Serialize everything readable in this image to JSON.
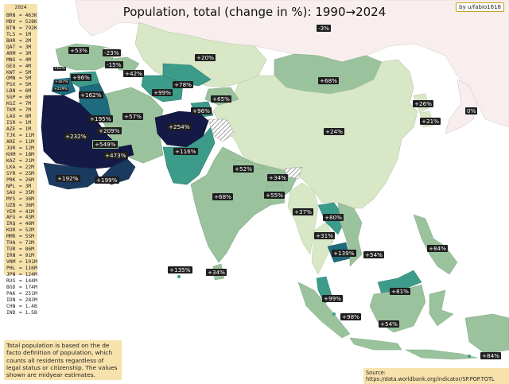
{
  "title": "Population, total (change in %):  1990→2024",
  "credit": "by u/fabio1618",
  "legend": {
    "year": "2024",
    "rows": [
      {
        "code": "BRN",
        "value": "463K"
      },
      {
        "code": "MDV",
        "value": "528K"
      },
      {
        "code": "BTN",
        "value": "792K"
      },
      {
        "code": "TLS",
        "value": "1M"
      },
      {
        "code": "BHR",
        "value": "2M"
      },
      {
        "code": "QAT",
        "value": "3M"
      },
      {
        "code": "ARM",
        "value": "3M"
      },
      {
        "code": "MNG",
        "value": "4M"
      },
      {
        "code": "GEO",
        "value": "4M"
      },
      {
        "code": "KWT",
        "value": "5M"
      },
      {
        "code": "OMN",
        "value": "5M"
      },
      {
        "code": "PSX",
        "value": "5M"
      },
      {
        "code": "LBN",
        "value": "6M"
      },
      {
        "code": "SGP",
        "value": "6M"
      },
      {
        "code": "KGZ",
        "value": "7M"
      },
      {
        "code": "TKM",
        "value": "7M"
      },
      {
        "code": "LAO",
        "value": "8M"
      },
      {
        "code": "ISR",
        "value": "1M"
      },
      {
        "code": "AZE",
        "value": "1M"
      },
      {
        "code": "TJK",
        "value": "11M"
      },
      {
        "code": "ARE",
        "value": "11M"
      },
      {
        "code": "JOR",
        "value": "12M"
      },
      {
        "code": "KHM",
        "value": "18M"
      },
      {
        "code": "KAZ",
        "value": "21M"
      },
      {
        "code": "LKA",
        "value": "22M"
      },
      {
        "code": "SYR",
        "value": "25M"
      },
      {
        "code": "PRK",
        "value": "26M"
      },
      {
        "code": "NPL",
        "value": "3M"
      },
      {
        "code": "SAU",
        "value": "35M"
      },
      {
        "code": "MYS",
        "value": "36M"
      },
      {
        "code": "UZB",
        "value": "36M"
      },
      {
        "code": "YEM",
        "value": "41M"
      },
      {
        "code": "AFG",
        "value": "43M"
      },
      {
        "code": "IRQ",
        "value": "46M"
      },
      {
        "code": "KOR",
        "value": "52M"
      },
      {
        "code": "MMR",
        "value": "55M"
      },
      {
        "code": "THA",
        "value": "72M"
      },
      {
        "code": "TUR",
        "value": "86M"
      },
      {
        "code": "IRN",
        "value": "91M"
      },
      {
        "code": "VNM",
        "value": "101M"
      },
      {
        "code": "PHL",
        "value": "116M"
      },
      {
        "code": "JPN",
        "value": "124M"
      },
      {
        "code": "RUS",
        "value": "144M"
      },
      {
        "code": "BGD",
        "value": "174M"
      },
      {
        "code": "PAK",
        "value": "251M"
      },
      {
        "code": "IDN",
        "value": "283M"
      },
      {
        "code": "CHN",
        "value": "1.4B"
      },
      {
        "code": "IND",
        "value": "1.5B"
      }
    ]
  },
  "note": "Total population is based on the de facto definition of population, which counts all residents regardless of legal status or citizenship. The values shown are midyear estimates.",
  "source": "Source: https://data.worldbank.org/indicator/SP.POP.TOTL",
  "colors": {
    "sea": "#ffffff",
    "outside": "#f7eeed",
    "low": "#d8e7c6",
    "mid": "#9ac39d",
    "high": "#3d9b8a",
    "veryhigh": "#1d6b7c",
    "extreme": "#1b3a5f",
    "max": "#141a45",
    "label_bg": "#1f1f1f",
    "legend_bg": "#f7e2ac"
  },
  "labels": [
    {
      "text": "-3%",
      "region": "russia-east"
    },
    {
      "text": "+53%",
      "region": "turkey"
    },
    {
      "text": "-23%",
      "region": "georgia"
    },
    {
      "text": "-15%",
      "region": "armenia"
    },
    {
      "text": "+42%",
      "region": "azerbaijan"
    },
    {
      "text": "+20%",
      "region": "kazakhstan"
    },
    {
      "text": "+68%",
      "region": "mongolia"
    },
    {
      "text": "+61%",
      "region": "lebanon"
    },
    {
      "text": "+96%",
      "region": "syria"
    },
    {
      "text": "+167%",
      "region": "israel"
    },
    {
      "text": "+219%",
      "region": "palestine"
    },
    {
      "text": "+78%",
      "region": "uzbekistan"
    },
    {
      "text": "+99%",
      "region": "turkmenistan"
    },
    {
      "text": "+65%",
      "region": "kyrgyzstan"
    },
    {
      "text": "+96%",
      "region": "tajikistan"
    },
    {
      "text": "+162%",
      "region": "iraq"
    },
    {
      "text": "+57%",
      "region": "iran"
    },
    {
      "text": "+254%",
      "region": "afghanistan"
    },
    {
      "text": "+26%",
      "region": "north-korea"
    },
    {
      "text": "0%",
      "region": "japan"
    },
    {
      "text": "+21%",
      "region": "south-korea"
    },
    {
      "text": "+195%",
      "region": "kuwait"
    },
    {
      "text": "+209%",
      "region": "bahrain"
    },
    {
      "text": "+232%",
      "region": "saudi-arabia"
    },
    {
      "text": "+549%",
      "region": "qatar"
    },
    {
      "text": "+473%",
      "region": "uae"
    },
    {
      "text": "+116%",
      "region": "pakistan"
    },
    {
      "text": "+24%",
      "region": "china"
    },
    {
      "text": "+192%",
      "region": "yemen"
    },
    {
      "text": "+199%",
      "region": "oman"
    },
    {
      "text": "+52%",
      "region": "nepal"
    },
    {
      "text": "+34%",
      "region": "bhutan"
    },
    {
      "text": "+68%",
      "region": "india"
    },
    {
      "text": "+55%",
      "region": "bangladesh"
    },
    {
      "text": "+37%",
      "region": "myanmar"
    },
    {
      "text": "+80%",
      "region": "laos"
    },
    {
      "text": "+31%",
      "region": "thailand"
    },
    {
      "text": "+139%",
      "region": "cambodia"
    },
    {
      "text": "+54%",
      "region": "vietnam"
    },
    {
      "text": "+84%",
      "region": "philippines"
    },
    {
      "text": "+135%",
      "region": "maldives"
    },
    {
      "text": "+34%",
      "region": "sri-lanka"
    },
    {
      "text": "+81%",
      "region": "brunei"
    },
    {
      "text": "+99%",
      "region": "malaysia"
    },
    {
      "text": "+98%",
      "region": "singapore"
    },
    {
      "text": "+54%",
      "region": "indonesia"
    },
    {
      "text": "+84%",
      "region": "timor-leste"
    }
  ]
}
